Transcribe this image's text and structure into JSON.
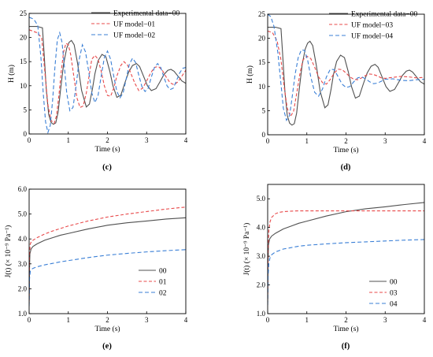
{
  "chart_data": [
    {
      "id": "c",
      "panel_label": "(c)",
      "type": "line",
      "xlabel": "Time (s)",
      "ylabel": "H (m)",
      "xlim": [
        0,
        4
      ],
      "ylim": [
        0,
        25
      ],
      "xticks": [
        0,
        1,
        2,
        3,
        4
      ],
      "xtick_labels": [
        "0",
        "1",
        "2",
        "3",
        "4"
      ],
      "yticks": [
        0,
        5,
        10,
        15,
        20,
        25
      ],
      "ytick_labels": [
        "0",
        "5",
        "10",
        "15",
        "20",
        "25"
      ],
      "legend_position": "top-right",
      "series": [
        {
          "name": "Experimental data−00",
          "color": "#505050",
          "dash": "solid",
          "x": [
            0,
            0.2,
            0.34,
            0.38,
            0.44,
            0.5,
            0.56,
            0.62,
            0.68,
            0.74,
            0.8,
            0.88,
            0.96,
            1.02,
            1.08,
            1.15,
            1.24,
            1.34,
            1.46,
            1.54,
            1.62,
            1.68,
            1.76,
            1.86,
            1.96,
            2.06,
            2.14,
            2.24,
            2.34,
            2.44,
            2.54,
            2.64,
            2.74,
            2.82,
            2.92,
            3.02,
            3.12,
            3.24,
            3.34,
            3.44,
            3.54,
            3.62,
            3.7,
            3.8,
            3.9,
            4.0
          ],
          "y": [
            22.3,
            22.3,
            22.0,
            17.0,
            9.0,
            4.0,
            2.4,
            2.0,
            2.3,
            4.5,
            9.0,
            14.5,
            17.8,
            19.0,
            19.4,
            18.5,
            14.5,
            9.0,
            5.6,
            6.2,
            9.5,
            12.5,
            15.2,
            16.5,
            16.0,
            13.0,
            10.0,
            7.6,
            8.0,
            10.5,
            12.8,
            14.2,
            14.6,
            14.0,
            12.0,
            10.0,
            9.0,
            9.4,
            10.8,
            12.3,
            13.2,
            13.4,
            13.0,
            12.0,
            11.0,
            10.5
          ]
        },
        {
          "name": "UF model−01",
          "color": "#e8494a",
          "dash": "4,2.5",
          "x": [
            0,
            0.2,
            0.32,
            0.4,
            0.48,
            0.56,
            0.64,
            0.7,
            0.76,
            0.82,
            0.88,
            0.94,
            1.0,
            1.06,
            1.14,
            1.22,
            1.3,
            1.38,
            1.46,
            1.54,
            1.6,
            1.68,
            1.76,
            1.84,
            1.92,
            2.0,
            2.08,
            2.16,
            2.24,
            2.34,
            2.42,
            2.52,
            2.6,
            2.7,
            2.8,
            2.9,
            3.0,
            3.1,
            3.2,
            3.3,
            3.4,
            3.5,
            3.6,
            3.7,
            3.8,
            3.9,
            4.0
          ],
          "y": [
            21.6,
            21.0,
            20.0,
            13.0,
            6.0,
            2.8,
            2.2,
            3.8,
            8.0,
            13.0,
            17.0,
            18.8,
            18.5,
            16.5,
            12.0,
            7.5,
            5.5,
            5.8,
            8.5,
            12.5,
            15.5,
            16.3,
            15.5,
            13.0,
            10.0,
            8.0,
            7.8,
            9.5,
            12.0,
            14.2,
            15.0,
            14.2,
            12.5,
            10.5,
            9.0,
            9.5,
            11.0,
            12.6,
            13.8,
            14.0,
            13.2,
            11.8,
            10.6,
            10.2,
            10.8,
            12.0,
            13.2
          ]
        },
        {
          "name": "UF model−02",
          "color": "#3a7fd6",
          "dash": "5,3",
          "x": [
            0,
            0.12,
            0.22,
            0.3,
            0.36,
            0.42,
            0.48,
            0.54,
            0.6,
            0.66,
            0.72,
            0.78,
            0.84,
            0.9,
            0.96,
            1.04,
            1.12,
            1.2,
            1.28,
            1.36,
            1.44,
            1.52,
            1.6,
            1.68,
            1.76,
            1.84,
            1.92,
            2.0,
            2.08,
            2.16,
            2.24,
            2.32,
            2.4,
            2.48,
            2.56,
            2.64,
            2.72,
            2.8,
            2.88,
            2.96,
            3.04,
            3.12,
            3.2,
            3.28,
            3.36,
            3.44,
            3.52,
            3.6,
            3.68,
            3.76,
            3.84,
            3.92,
            4.0
          ],
          "y": [
            24.2,
            23.8,
            22.5,
            16.0,
            8.5,
            2.5,
            0.3,
            1.8,
            7.0,
            14.0,
            19.5,
            21.0,
            19.0,
            14.0,
            8.5,
            4.8,
            5.5,
            10.0,
            15.5,
            18.5,
            17.0,
            13.0,
            8.5,
            6.5,
            8.0,
            12.0,
            15.8,
            17.2,
            15.5,
            12.0,
            8.8,
            7.5,
            8.5,
            11.5,
            14.5,
            15.7,
            14.8,
            12.2,
            9.8,
            8.8,
            9.5,
            11.8,
            13.8,
            14.6,
            13.8,
            11.8,
            10.0,
            9.2,
            9.5,
            11.0,
            12.6,
            13.6,
            13.8
          ]
        }
      ]
    },
    {
      "id": "d",
      "panel_label": "(d)",
      "type": "line",
      "xlabel": "Time (s)",
      "ylabel": "H (m)",
      "xlim": [
        0,
        4
      ],
      "ylim": [
        0,
        25
      ],
      "xticks": [
        0,
        1,
        2,
        3,
        4
      ],
      "xtick_labels": [
        "0",
        "1",
        "2",
        "3",
        "4"
      ],
      "yticks": [
        0,
        5,
        10,
        15,
        20,
        25
      ],
      "ytick_labels": [
        "0",
        "5",
        "10",
        "15",
        "20",
        "25"
      ],
      "legend_position": "top-right",
      "series": [
        {
          "name": "Experimental data−00",
          "color": "#505050",
          "dash": "solid",
          "x": [
            0,
            0.2,
            0.34,
            0.38,
            0.44,
            0.5,
            0.56,
            0.62,
            0.68,
            0.74,
            0.8,
            0.88,
            0.96,
            1.02,
            1.08,
            1.15,
            1.24,
            1.34,
            1.46,
            1.54,
            1.62,
            1.68,
            1.76,
            1.86,
            1.96,
            2.06,
            2.14,
            2.24,
            2.34,
            2.44,
            2.54,
            2.64,
            2.74,
            2.82,
            2.92,
            3.02,
            3.12,
            3.24,
            3.34,
            3.44,
            3.54,
            3.62,
            3.7,
            3.8,
            3.9,
            4.0
          ],
          "y": [
            22.3,
            22.3,
            22.0,
            17.0,
            9.0,
            4.0,
            2.4,
            2.0,
            2.3,
            4.5,
            9.0,
            14.5,
            17.8,
            19.0,
            19.4,
            18.5,
            14.5,
            9.0,
            5.6,
            6.2,
            9.5,
            12.5,
            15.2,
            16.5,
            16.0,
            13.0,
            10.0,
            7.6,
            8.0,
            10.5,
            12.8,
            14.2,
            14.6,
            14.0,
            12.0,
            10.0,
            9.0,
            9.4,
            10.8,
            12.3,
            13.2,
            13.4,
            13.0,
            12.0,
            11.0,
            10.5
          ]
        },
        {
          "name": "UF model−03",
          "color": "#e8494a",
          "dash": "4,2.5",
          "x": [
            0,
            0.12,
            0.24,
            0.34,
            0.42,
            0.5,
            0.58,
            0.66,
            0.74,
            0.82,
            0.9,
            1.0,
            1.1,
            1.2,
            1.3,
            1.4,
            1.5,
            1.6,
            1.7,
            1.8,
            1.9,
            2.0,
            2.1,
            2.2,
            2.3,
            2.4,
            2.5,
            2.6,
            2.7,
            2.8,
            2.9,
            3.0,
            3.2,
            3.4,
            3.6,
            3.8,
            4.0
          ],
          "y": [
            21.5,
            21.2,
            19.5,
            15.5,
            10.0,
            5.5,
            3.8,
            4.8,
            8.5,
            12.5,
            15.5,
            16.3,
            15.8,
            14.0,
            12.0,
            10.8,
            10.5,
            11.5,
            12.8,
            13.6,
            13.5,
            12.8,
            12.0,
            11.5,
            11.4,
            11.8,
            12.3,
            12.6,
            12.5,
            12.2,
            11.8,
            11.7,
            11.9,
            12.1,
            12.0,
            11.8,
            11.9
          ]
        },
        {
          "name": "UF model−04",
          "color": "#3a7fd6",
          "dash": "5,3",
          "x": [
            0,
            0.08,
            0.16,
            0.26,
            0.34,
            0.4,
            0.48,
            0.56,
            0.62,
            0.7,
            0.78,
            0.86,
            0.94,
            1.02,
            1.1,
            1.2,
            1.3,
            1.4,
            1.5,
            1.6,
            1.7,
            1.8,
            1.9,
            2.0,
            2.1,
            2.2,
            2.3,
            2.4,
            2.5,
            2.6,
            2.7,
            2.8,
            2.9,
            3.0,
            3.2,
            3.4,
            3.6,
            3.8,
            4.0
          ],
          "y": [
            25.0,
            24.5,
            22.5,
            17.0,
            10.5,
            5.5,
            3.0,
            4.0,
            7.5,
            12.5,
            16.0,
            17.6,
            17.5,
            15.5,
            12.0,
            8.8,
            8.0,
            9.5,
            12.0,
            13.6,
            13.5,
            12.0,
            10.5,
            9.8,
            10.0,
            11.0,
            11.8,
            12.0,
            11.6,
            11.0,
            10.6,
            10.7,
            11.1,
            11.5,
            11.6,
            11.3,
            11.2,
            11.4,
            11.5
          ]
        }
      ]
    },
    {
      "id": "e",
      "panel_label": "(e)",
      "type": "line",
      "xlabel": "Time (s)",
      "ylabel": "J(t) (× 10⁻⁹ Pa⁻¹)",
      "xlim": [
        0,
        4
      ],
      "ylim": [
        1.0,
        6.0
      ],
      "xticks": [
        0,
        1,
        2,
        3,
        4
      ],
      "xtick_labels": [
        "0",
        "1",
        "2",
        "3",
        "4"
      ],
      "yticks": [
        1.0,
        2.0,
        3.0,
        4.0,
        5.0,
        6.0
      ],
      "ytick_labels": [
        "1.0",
        "2.0",
        "3.0",
        "4.0",
        "5.0",
        "6.0"
      ],
      "legend_position": "bottom-right",
      "series": [
        {
          "name": "00",
          "color": "#505050",
          "dash": "solid",
          "x": [
            0,
            0.01,
            0.02,
            0.05,
            0.1,
            0.2,
            0.4,
            0.6,
            0.8,
            1.0,
            1.5,
            2.0,
            2.5,
            3.0,
            3.5,
            4.0
          ],
          "y": [
            1.4,
            2.8,
            3.4,
            3.6,
            3.7,
            3.8,
            3.95,
            4.05,
            4.15,
            4.22,
            4.4,
            4.55,
            4.65,
            4.72,
            4.8,
            4.85
          ]
        },
        {
          "name": "01",
          "color": "#e8494a",
          "dash": "4,2.5",
          "x": [
            0,
            0.01,
            0.03,
            0.06,
            0.1,
            0.2,
            0.4,
            0.6,
            0.8,
            1.0,
            1.5,
            2.0,
            2.5,
            3.0,
            3.5,
            4.0
          ],
          "y": [
            1.5,
            3.4,
            3.8,
            3.9,
            3.95,
            4.05,
            4.2,
            4.32,
            4.42,
            4.52,
            4.72,
            4.88,
            5.0,
            5.1,
            5.2,
            5.28
          ]
        },
        {
          "name": "02",
          "color": "#3a7fd6",
          "dash": "5,3",
          "x": [
            0,
            0.01,
            0.03,
            0.06,
            0.1,
            0.2,
            0.4,
            0.6,
            0.8,
            1.0,
            1.5,
            2.0,
            2.5,
            3.0,
            3.5,
            4.0
          ],
          "y": [
            1.3,
            2.4,
            2.7,
            2.78,
            2.82,
            2.88,
            2.96,
            3.02,
            3.08,
            3.13,
            3.25,
            3.35,
            3.42,
            3.48,
            3.53,
            3.57
          ]
        }
      ]
    },
    {
      "id": "f",
      "panel_label": "(f)",
      "type": "line",
      "xlabel": "Time (s)",
      "ylabel": "J(t) (× 10⁻⁹ Pa⁻¹)",
      "xlim": [
        0,
        4
      ],
      "ylim": [
        1.0,
        5.5
      ],
      "xticks": [
        0,
        1,
        2,
        3,
        4
      ],
      "xtick_labels": [
        "0",
        "1",
        "2",
        "3",
        "4"
      ],
      "yticks": [
        1.0,
        2.0,
        3.0,
        4.0,
        5.0
      ],
      "ytick_labels": [
        "1.0",
        "2.0",
        "3.0",
        "4.0",
        "5.0"
      ],
      "legend_position": "center-right",
      "series": [
        {
          "name": "00",
          "color": "#505050",
          "dash": "solid",
          "x": [
            0,
            0.01,
            0.02,
            0.05,
            0.1,
            0.2,
            0.4,
            0.6,
            0.8,
            1.0,
            1.5,
            2.0,
            2.5,
            3.0,
            3.5,
            4.0
          ],
          "y": [
            1.4,
            2.8,
            3.4,
            3.6,
            3.7,
            3.8,
            3.95,
            4.05,
            4.15,
            4.22,
            4.4,
            4.55,
            4.65,
            4.72,
            4.8,
            4.87
          ]
        },
        {
          "name": "03",
          "color": "#e8494a",
          "dash": "4,2.5",
          "x": [
            0,
            0.01,
            0.03,
            0.06,
            0.1,
            0.2,
            0.3,
            0.4,
            0.6,
            0.8,
            1.0,
            2.0,
            3.0,
            4.0
          ],
          "y": [
            1.5,
            3.2,
            3.9,
            4.2,
            4.35,
            4.48,
            4.53,
            4.55,
            4.57,
            4.58,
            4.58,
            4.58,
            4.58,
            4.58
          ]
        },
        {
          "name": "04",
          "color": "#3a7fd6",
          "dash": "5,3",
          "x": [
            0,
            0.01,
            0.03,
            0.06,
            0.1,
            0.2,
            0.4,
            0.6,
            0.8,
            1.0,
            1.5,
            2.0,
            2.5,
            3.0,
            3.5,
            4.0
          ],
          "y": [
            1.3,
            2.3,
            2.75,
            2.95,
            3.05,
            3.15,
            3.25,
            3.3,
            3.35,
            3.38,
            3.43,
            3.47,
            3.5,
            3.53,
            3.56,
            3.58
          ]
        }
      ]
    }
  ]
}
